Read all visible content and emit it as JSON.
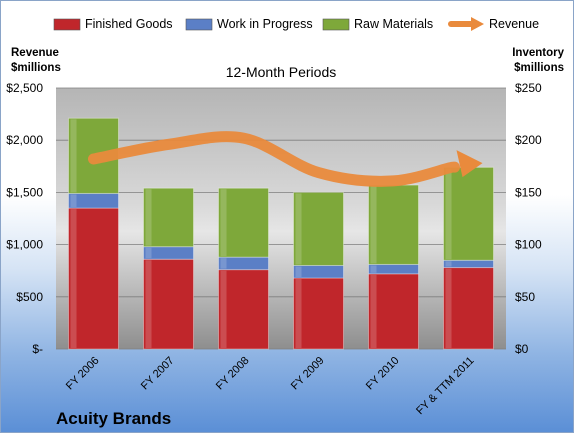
{
  "chart_data": {
    "type": "bar",
    "subtitle": "12-Month Periods",
    "company": "Acuity Brands",
    "categories": [
      "FY 2006",
      "FY 2007",
      "FY 2008",
      "FY 2009",
      "FY 2010",
      "FY & TTM 2011"
    ],
    "stacked": true,
    "series": [
      {
        "name": "Finished Goods",
        "axis": "right",
        "color": "#c0262b",
        "values": [
          135,
          86,
          76,
          68,
          72,
          78
        ]
      },
      {
        "name": "Work in Progress",
        "axis": "right",
        "color": "#5b7fc6",
        "values": [
          14,
          12,
          12,
          12,
          9,
          7
        ]
      },
      {
        "name": "Raw Materials",
        "axis": "right",
        "color": "#7ea83a",
        "values": [
          72,
          56,
          66,
          70,
          76,
          89
        ]
      },
      {
        "name": "Revenue",
        "axis": "left",
        "type": "line",
        "color": "#e98a3c",
        "values": [
          1820,
          1960,
          2020,
          1690,
          1610,
          1780
        ]
      }
    ],
    "y_left": {
      "label_line1": "Revenue",
      "label_line2": "$millions",
      "lim": [
        0,
        2500
      ],
      "ticks": [
        0,
        500,
        1000,
        1500,
        2000,
        2500
      ],
      "tick_labels": [
        "$-",
        "$500",
        "$1,000",
        "$1,500",
        "$2,000",
        "$2,500"
      ]
    },
    "y_right": {
      "label_line1": "Inventory",
      "label_line2": "$millions",
      "lim": [
        0,
        250
      ],
      "ticks": [
        0,
        50,
        100,
        150,
        200,
        250
      ],
      "tick_labels": [
        "$0",
        "$50",
        "$100",
        "$150",
        "$200",
        "$250"
      ]
    },
    "grid": true,
    "legend_position": "top"
  }
}
